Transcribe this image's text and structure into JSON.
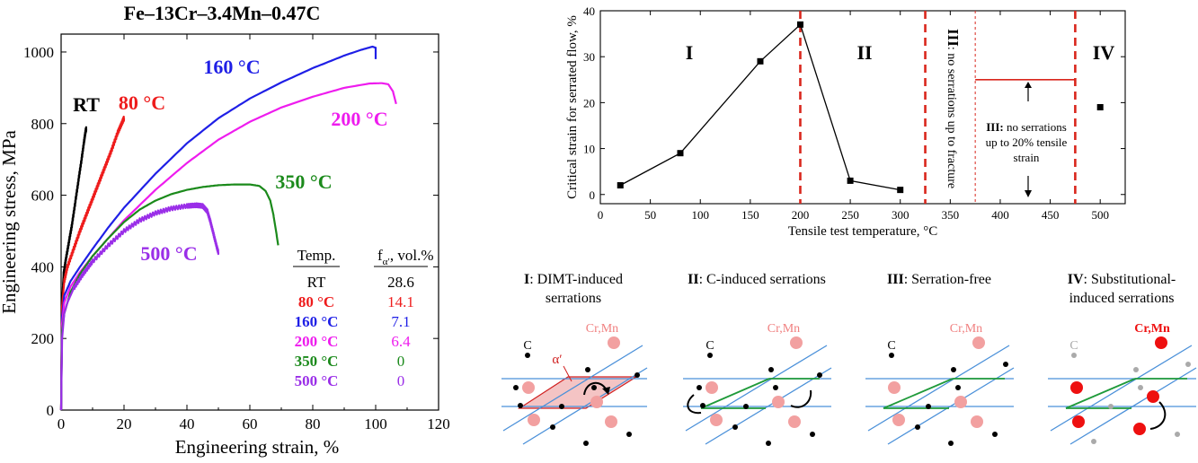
{
  "figure": {
    "left_chart": {
      "title": "Fe–13Cr–3.4Mn–0.47C",
      "xlabel": "Engineering strain, %",
      "ylabel": "Engineering stress, MPa",
      "table_header_temp": "Temp.",
      "table_header_frac_main": "f",
      "table_header_frac_sub": "α′",
      "table_header_frac_unit": ", vol.%"
    },
    "right_chart": {
      "xlabel": "Tensile test temperature, °C",
      "ylabel": "Critical strain for serrated flow, %",
      "region_I": "I",
      "region_II": "II",
      "region_III": "III",
      "region_III_vertical_note": ": no serrations up to fracture",
      "region_IV": "IV",
      "note_bold": "III:",
      "note_line1_rest": " no serrations",
      "note_line2": "up to 20% tensile",
      "note_line3": "strain"
    },
    "schematics": [
      {
        "id": "I",
        "title_bold": "I",
        "title_line1": ": DIMT-induced",
        "title_line2": "serrations"
      },
      {
        "id": "II",
        "title_bold": "II",
        "title_line1": ": C-induced serrations",
        "title_line2": ""
      },
      {
        "id": "III",
        "title_bold": "III",
        "title_line1": ": Serration-free",
        "title_line2": ""
      },
      {
        "id": "IV",
        "title_bold": "IV",
        "title_line1": ": Substitutional-",
        "title_line2": "induced serrations"
      }
    ],
    "schematic_labels": {
      "carbon": "C",
      "cr_mn": "Cr,Mn",
      "alpha_prime": "α′"
    },
    "colors": {
      "RT": "#000000",
      "80": "#ee1c1c",
      "160": "#1f1fe6",
      "200": "#ee1cee",
      "350": "#1b8a1b",
      "500": "#9a2ee8",
      "dashed_red": "#d9261c",
      "slip_plane": "#4a90d9",
      "slip_band": "#1f9a3a",
      "cr_mn_light": "#f2a0a0",
      "cr_mn_dark": "#ee1010",
      "alpha_fill": "#f2b8b8"
    }
  },
  "chart_data": [
    {
      "type": "line",
      "title": "Fe–13Cr–3.4Mn–0.47C",
      "xlabel": "Engineering strain, %",
      "ylabel": "Engineering stress, MPa",
      "xlim": [
        0,
        120
      ],
      "ylim": [
        0,
        1050
      ],
      "xticks": [
        0,
        20,
        40,
        60,
        80,
        100,
        120
      ],
      "yticks": [
        0,
        200,
        400,
        600,
        800,
        1000
      ],
      "series": [
        {
          "name": "RT",
          "key": "RT",
          "serrated": true,
          "x": [
            0,
            0.3,
            0.8,
            1.5,
            2.5,
            3.5,
            4.5,
            5.5,
            6.5,
            7.3,
            7.8,
            8.0
          ],
          "y": [
            0,
            300,
            380,
            420,
            470,
            520,
            580,
            640,
            700,
            750,
            780,
            785
          ]
        },
        {
          "name": "80 °C",
          "key": "80",
          "serrated": true,
          "x": [
            0,
            0.3,
            1,
            2,
            4,
            6,
            8,
            10,
            12,
            14,
            16,
            18,
            19.5,
            20
          ],
          "y": [
            0,
            290,
            360,
            400,
            450,
            500,
            545,
            590,
            635,
            680,
            725,
            775,
            805,
            815
          ]
        },
        {
          "name": "160 °C",
          "key": "160",
          "serrated": false,
          "x": [
            0,
            0.3,
            1,
            3,
            6,
            10,
            15,
            20,
            30,
            40,
            50,
            60,
            70,
            80,
            90,
            95,
            99,
            100,
            100
          ],
          "y": [
            0,
            260,
            320,
            360,
            400,
            450,
            510,
            565,
            660,
            745,
            815,
            870,
            915,
            955,
            990,
            1005,
            1015,
            1012,
            980
          ]
        },
        {
          "name": "200 °C",
          "key": "200",
          "serrated": false,
          "x": [
            0,
            0.3,
            1,
            3,
            6,
            10,
            15,
            20,
            30,
            40,
            50,
            60,
            70,
            80,
            90,
            98,
            102,
            104,
            105.5,
            106.5
          ],
          "y": [
            0,
            240,
            300,
            345,
            385,
            430,
            480,
            530,
            615,
            690,
            755,
            805,
            845,
            875,
            900,
            912,
            913,
            910,
            890,
            855
          ]
        },
        {
          "name": "350 °C",
          "key": "350",
          "serrated": false,
          "x": [
            0,
            0.3,
            1,
            3,
            6,
            10,
            15,
            20,
            25,
            30,
            35,
            40,
            45,
            50,
            55,
            60,
            63,
            65,
            66.5,
            67.5,
            68.5,
            69
          ],
          "y": [
            0,
            220,
            270,
            330,
            380,
            430,
            480,
            525,
            560,
            585,
            603,
            615,
            623,
            628,
            630,
            630,
            626,
            612,
            585,
            545,
            490,
            460
          ]
        },
        {
          "name": "500 °C",
          "key": "500",
          "serrated": true,
          "x": [
            0,
            0.3,
            1,
            2,
            4,
            7,
            10,
            15,
            20,
            25,
            30,
            35,
            40,
            43,
            45,
            46.5,
            47.5,
            48.5,
            49.5,
            50
          ],
          "y": [
            0,
            200,
            270,
            300,
            340,
            380,
            415,
            460,
            500,
            530,
            550,
            563,
            570,
            572,
            570,
            555,
            525,
            490,
            455,
            440
          ]
        }
      ],
      "curve_labels": [
        "RT",
        "80 °C",
        "160 °C",
        "200 °C",
        "350 °C",
        "500 °C"
      ],
      "table": {
        "header": [
          "Temp.",
          "f α′, vol.%"
        ],
        "rows": [
          {
            "temp": "RT",
            "value": "28.6",
            "key": "RT"
          },
          {
            "temp": "80 °C",
            "value": "14.1",
            "key": "80"
          },
          {
            "temp": "160 °C",
            "value": "7.1",
            "key": "160"
          },
          {
            "temp": "200 °C",
            "value": "6.4",
            "key": "200"
          },
          {
            "temp": "350 °C",
            "value": "0",
            "key": "350"
          },
          {
            "temp": "500 °C",
            "value": "0",
            "key": "500"
          }
        ]
      }
    },
    {
      "type": "line",
      "title": "",
      "xlabel": "Tensile test temperature, °C",
      "ylabel": "Critical strain for serrated flow, %",
      "xlim": [
        0,
        525
      ],
      "ylim": [
        -2,
        40
      ],
      "xticks": [
        0,
        50,
        100,
        150,
        200,
        250,
        300,
        350,
        400,
        450,
        500
      ],
      "yticks": [
        0,
        10,
        20,
        30,
        40
      ],
      "grid": false,
      "series": [
        {
          "name": "",
          "x": [
            20,
            80,
            160,
            200,
            250,
            300
          ],
          "y": [
            2,
            9,
            29,
            37,
            3,
            1
          ],
          "connected": true
        },
        {
          "name": "",
          "x": [
            500
          ],
          "y": [
            19
          ],
          "connected": false
        }
      ],
      "vertical_dashed_lines_x": [
        200,
        325,
        475
      ],
      "vertical_thin_dashed_line_x": 375,
      "threshold_line": {
        "x0": 375,
        "x1": 475,
        "y": 25
      },
      "regions": [
        "I",
        "II",
        "III",
        "IV"
      ]
    }
  ]
}
